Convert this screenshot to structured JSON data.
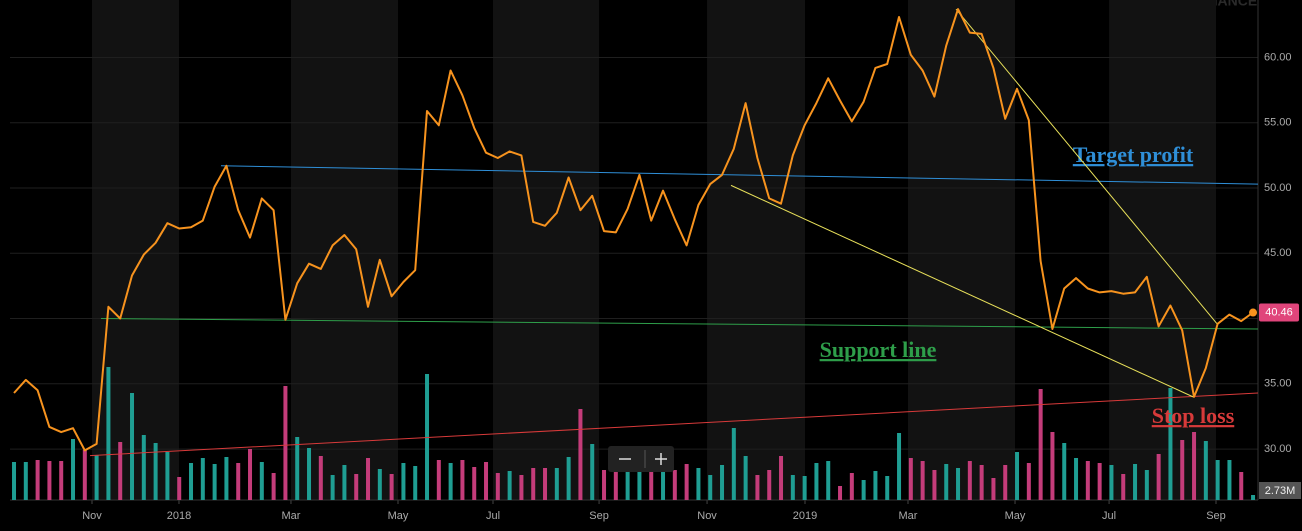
{
  "chart_data": {
    "type": "line",
    "watermark": "FINANCE",
    "xlim": [
      -0.34,
      105.42
    ],
    "xticks": [
      {
        "value": 6.61,
        "label": "Nov"
      },
      {
        "value": 13.98,
        "label": "2018"
      },
      {
        "value": 23.47,
        "label": "Mar"
      },
      {
        "value": 32.54,
        "label": "May"
      },
      {
        "value": 40.59,
        "label": "Jul"
      },
      {
        "value": 49.58,
        "label": "Sep"
      },
      {
        "value": 58.73,
        "label": "Nov"
      },
      {
        "value": 67.03,
        "label": "2019"
      },
      {
        "value": 75.76,
        "label": "Mar"
      },
      {
        "value": 84.83,
        "label": "May"
      },
      {
        "value": 92.8,
        "label": "Jul"
      },
      {
        "value": 101.86,
        "label": "Sep"
      }
    ],
    "ylim": [
      26.1,
      64.4
    ],
    "yticks": [
      {
        "value": 30,
        "label": "30.00"
      },
      {
        "value": 35,
        "label": "35.00"
      },
      {
        "value": 40,
        "label": "40.00"
      },
      {
        "value": 45,
        "label": "45.00"
      },
      {
        "value": 50,
        "label": "50.00"
      },
      {
        "value": 55,
        "label": "55.00"
      },
      {
        "value": 60,
        "label": "60.00"
      }
    ],
    "grid": true,
    "series": [
      {
        "color": "#f7931e",
        "price_label": "40.46",
        "values": [
          34.3,
          35.3,
          34.5,
          31.7,
          31.3,
          31.6,
          29.9,
          30.4,
          40.9,
          40.0,
          43.3,
          44.9,
          45.8,
          47.3,
          46.9,
          47.0,
          47.5,
          50.1,
          51.7,
          48.3,
          46.2,
          49.2,
          48.3,
          39.9,
          42.7,
          44.2,
          43.8,
          45.6,
          46.4,
          45.3,
          40.9,
          44.5,
          41.7,
          42.8,
          43.7,
          55.9,
          54.8,
          59.0,
          57.1,
          54.6,
          52.7,
          52.3,
          52.8,
          52.5,
          47.4,
          47.1,
          48.1,
          50.8,
          48.3,
          49.4,
          46.7,
          46.6,
          48.4,
          51.0,
          47.5,
          49.8,
          47.6,
          45.6,
          48.7,
          50.3,
          51.0,
          53.0,
          56.5,
          52.3,
          49.2,
          48.8,
          52.5,
          54.8,
          56.5,
          58.4,
          56.7,
          55.1,
          56.6,
          59.2,
          59.5,
          63.1,
          60.2,
          59.0,
          57.0,
          60.9,
          63.7,
          61.9,
          61.8,
          59.2,
          55.3,
          57.6,
          55.2,
          44.4,
          39.2,
          42.3,
          43.1,
          42.3,
          42.0,
          42.1,
          41.9,
          42.0,
          43.2,
          39.4,
          41.0,
          39.1,
          34.0,
          36.2,
          39.6,
          40.3,
          39.8,
          40.46
        ]
      }
    ],
    "volume": {
      "up_color": "#1f9e93",
      "down_color": "#c43c7a",
      "ylim": [
        0,
        50
      ],
      "value_label": "2.73M",
      "values": [
        3.8,
        3.8,
        4.0,
        3.9,
        3.9,
        6.1,
        5.0,
        4.5,
        13.3,
        5.8,
        10.7,
        6.5,
        5.7,
        4.8,
        2.3,
        3.7,
        4.2,
        3.6,
        4.3,
        3.7,
        5.1,
        3.8,
        2.7,
        11.4,
        6.3,
        5.2,
        4.4,
        2.5,
        3.5,
        2.6,
        4.2,
        3.1,
        2.6,
        3.7,
        3.4,
        12.6,
        4.0,
        3.7,
        4.0,
        3.3,
        3.8,
        2.7,
        2.9,
        2.5,
        3.2,
        3.2,
        3.2,
        4.3,
        9.1,
        5.6,
        3.0,
        3.0,
        3.0,
        3.0,
        3.0,
        3.0,
        3.0,
        3.6,
        3.2,
        2.5,
        3.5,
        7.2,
        4.4,
        2.5,
        3.0,
        4.4,
        2.5,
        2.4,
        3.7,
        3.9,
        1.4,
        2.7,
        2.0,
        2.9,
        2.4,
        6.7,
        4.2,
        3.9,
        3.0,
        3.6,
        3.2,
        3.9,
        3.5,
        2.2,
        3.5,
        4.8,
        3.7,
        11.1,
        6.8,
        5.7,
        4.2,
        3.9,
        3.7,
        3.5,
        2.6,
        3.6,
        3.0,
        4.6,
        11.2,
        6.0,
        6.8,
        5.9,
        4.0,
        4.0,
        2.8,
        0.5
      ]
    },
    "trendlines": [
      {
        "label": "Target profit",
        "color": "#2f8fd8",
        "x": [
          17.54,
          105.42
        ],
        "values": [
          51.7,
          50.3
        ]
      },
      {
        "label": "Support line",
        "color": "#2e9e4a",
        "x": [
          7.37,
          105.42
        ],
        "values": [
          40.0,
          39.2
        ]
      },
      {
        "label": "Stop loss",
        "color": "#d83a3a",
        "x": [
          6.44,
          105.42
        ],
        "values": [
          29.5,
          34.3
        ]
      },
      {
        "color": "#e8e05a",
        "x": [
          60.76,
          99.92
        ],
        "values": [
          50.2,
          34.0
        ]
      },
      {
        "color": "#e8e05a",
        "x": [
          79.83,
          101.95
        ],
        "values": [
          63.7,
          39.6
        ]
      }
    ]
  }
}
